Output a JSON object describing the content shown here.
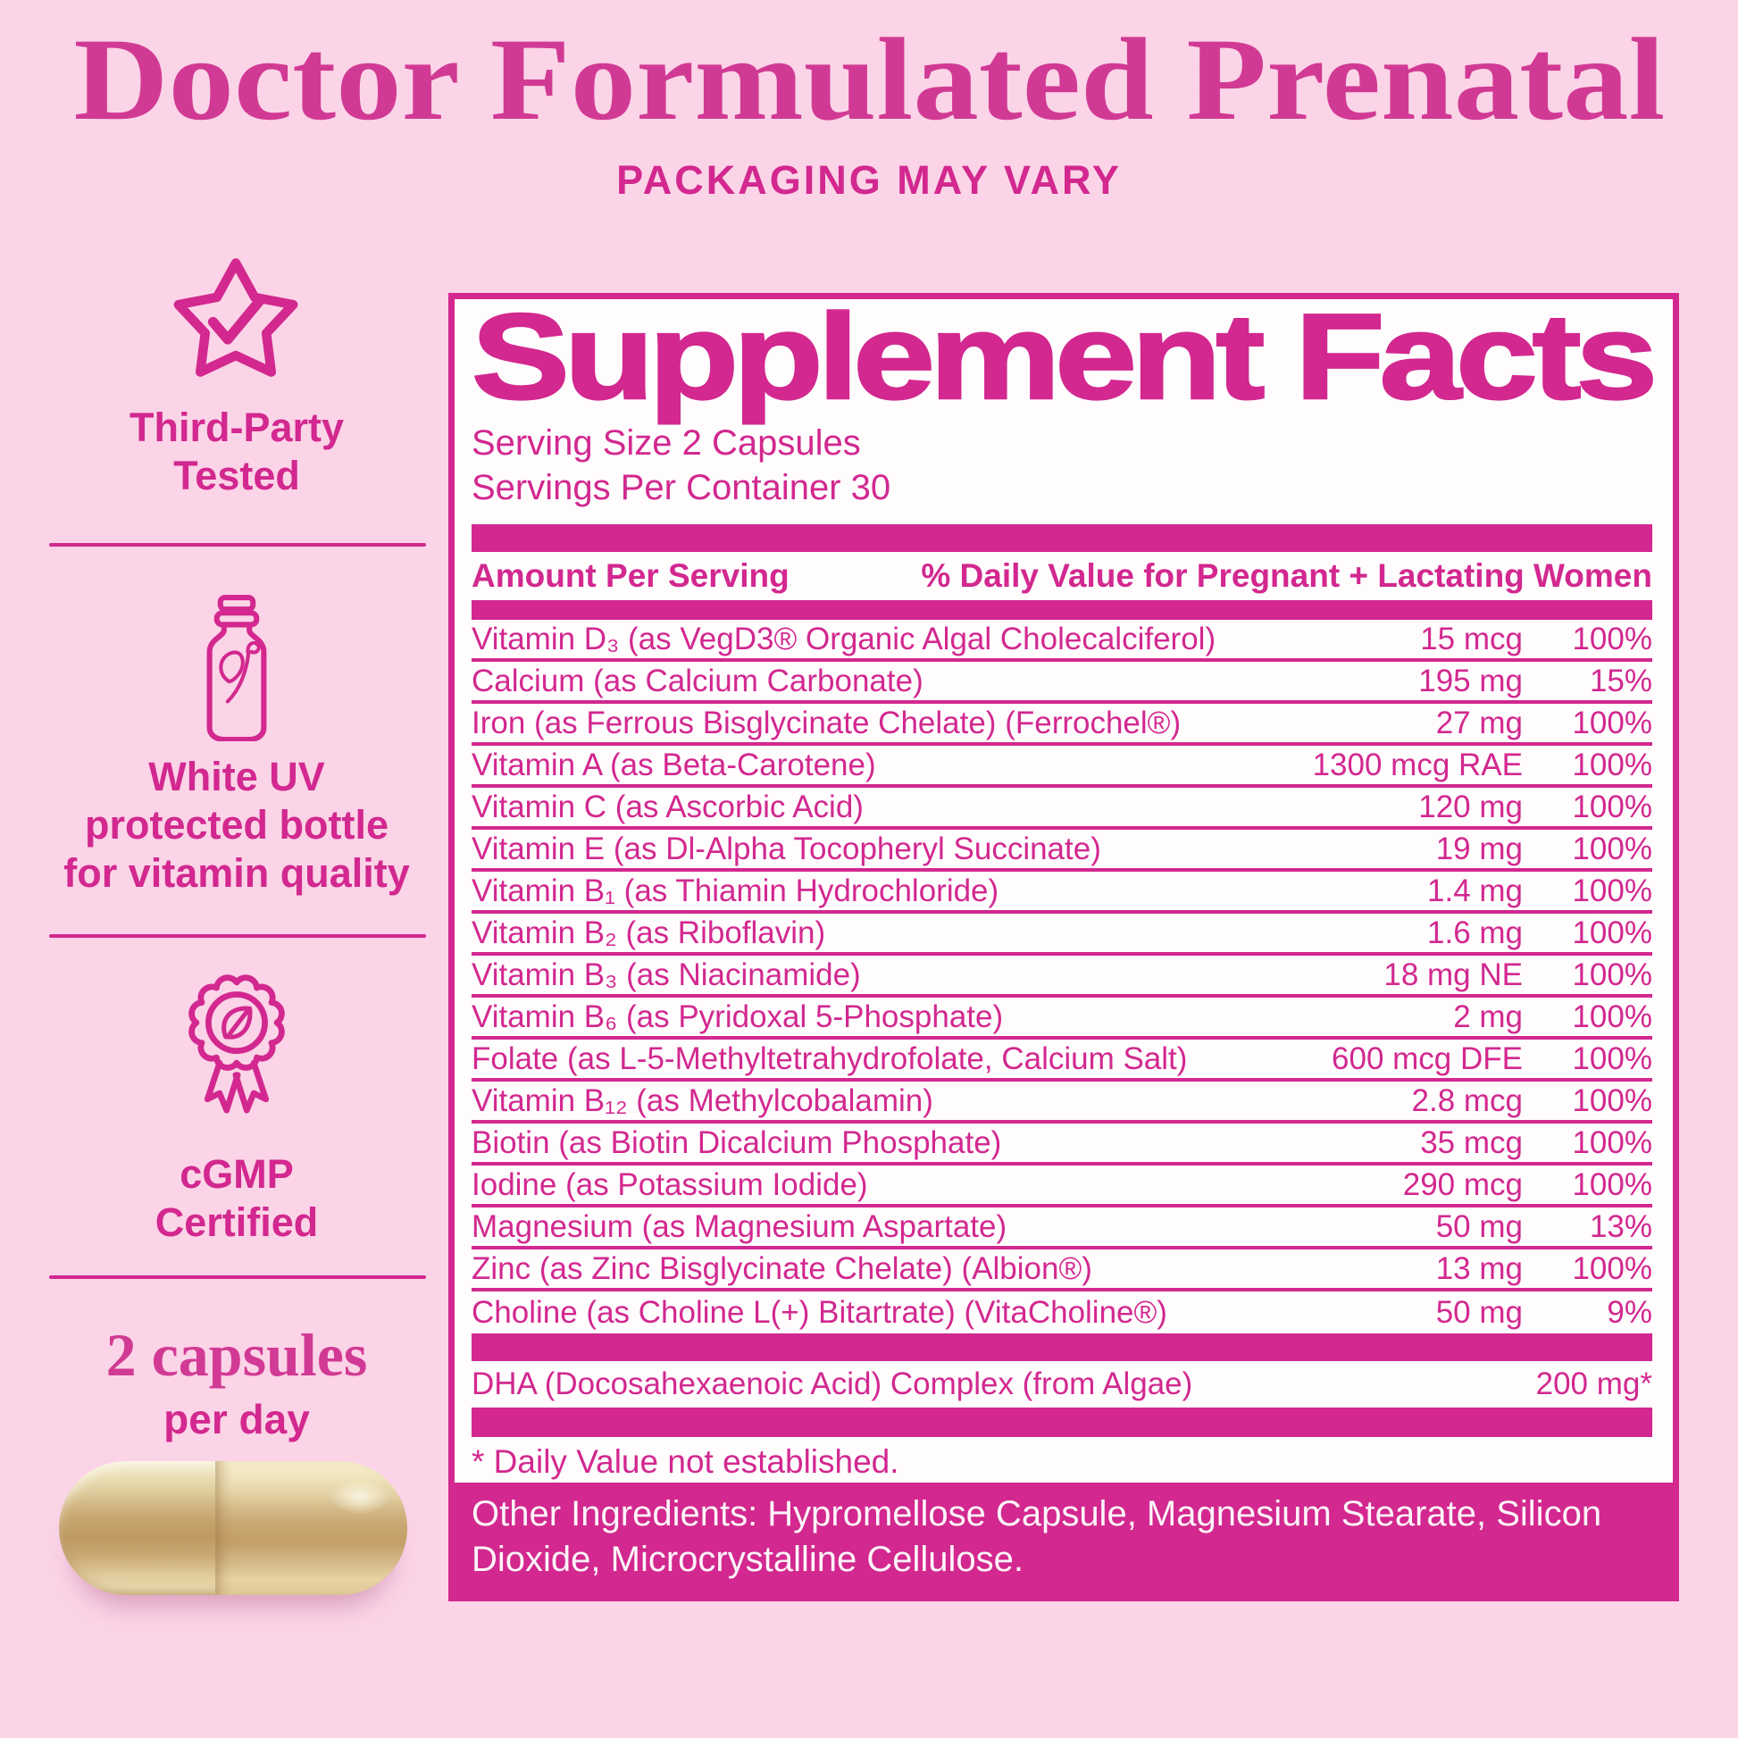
{
  "header": {
    "title": "Doctor Formulated Prenatal",
    "subtitle": "PACKAGING MAY VARY"
  },
  "features": [
    {
      "icon": "star-check-icon",
      "lines": [
        "Third-Party",
        "Tested"
      ]
    },
    {
      "icon": "uv-bottle-icon",
      "lines": [
        "White UV",
        "protected bottle",
        "for vitamin quality"
      ]
    },
    {
      "icon": "cgmp-ribbon-icon",
      "lines": [
        "cGMP",
        "Certified"
      ]
    }
  ],
  "dosage": {
    "amount": "2 capsules",
    "frequency": "per day",
    "image": "capsule-photo"
  },
  "supplement_facts": {
    "title": "Supplement Facts",
    "serving_size": "Serving Size 2 Capsules",
    "servings_per_container": "Servings Per Container 30",
    "col_amount": "Amount Per Serving",
    "col_dv": "% Daily Value for Pregnant + Lactating Women",
    "nutrients": [
      {
        "name": "Vitamin D₃ (as VegD3® Organic Algal Cholecalciferol)",
        "amount": "15 mcg",
        "dv": "100%"
      },
      {
        "name": "Calcium (as Calcium Carbonate)",
        "amount": "195 mg",
        "dv": "15%"
      },
      {
        "name": "Iron (as Ferrous Bisglycinate Chelate) (Ferrochel®)",
        "amount": "27 mg",
        "dv": "100%"
      },
      {
        "name": "Vitamin A (as Beta-Carotene)",
        "amount": "1300 mcg RAE",
        "dv": "100%"
      },
      {
        "name": "Vitamin C (as Ascorbic Acid)",
        "amount": "120 mg",
        "dv": "100%"
      },
      {
        "name": "Vitamin E (as Dl-Alpha Tocopheryl Succinate)",
        "amount": "19 mg",
        "dv": "100%"
      },
      {
        "name": "Vitamin B₁ (as Thiamin Hydrochloride)",
        "amount": "1.4 mg",
        "dv": "100%"
      },
      {
        "name": "Vitamin B₂ (as Riboflavin)",
        "amount": "1.6 mg",
        "dv": "100%"
      },
      {
        "name": "Vitamin B₃ (as Niacinamide)",
        "amount": "18 mg NE",
        "dv": "100%"
      },
      {
        "name": "Vitamin B₆ (as Pyridoxal 5-Phosphate)",
        "amount": "2 mg",
        "dv": "100%"
      },
      {
        "name": "Folate (as L-5-Methyltetrahydrofolate, Calcium Salt)",
        "amount": "600 mcg DFE",
        "dv": "100%"
      },
      {
        "name": "Vitamin B₁₂ (as Methylcobalamin)",
        "amount": "2.8 mcg",
        "dv": "100%"
      },
      {
        "name": "Biotin (as Biotin Dicalcium Phosphate)",
        "amount": "35 mcg",
        "dv": "100%"
      },
      {
        "name": "Iodine (as Potassium Iodide)",
        "amount": "290 mcg",
        "dv": "100%"
      },
      {
        "name": "Magnesium (as Magnesium Aspartate)",
        "amount": "50 mg",
        "dv": "13%"
      },
      {
        "name": "Zinc (as Zinc Bisglycinate Chelate) (Albion®)",
        "amount": "13 mg",
        "dv": "100%"
      },
      {
        "name": "Choline (as Choline L(+) Bitartrate) (VitaCholine®)",
        "amount": "50 mg",
        "dv": "9%"
      }
    ],
    "extra_row": {
      "name": "DHA (Docosahexaenoic Acid) Complex (from Algae)",
      "amount": "200 mg*"
    },
    "footnote": "* Daily Value not established.",
    "other_ingredients": "Other Ingredients: Hypromellose Capsule, Magnesium Stearate, Silicon Dioxide, Microcrystalline Cellulose."
  },
  "colors": {
    "accent": "#d2288f",
    "background": "#fbd4e7",
    "panel_bg": "#fffcfe",
    "title_serif": "#d13a94",
    "capsule_shell": "#eee3bd",
    "capsule_powder": "#c4a271"
  }
}
